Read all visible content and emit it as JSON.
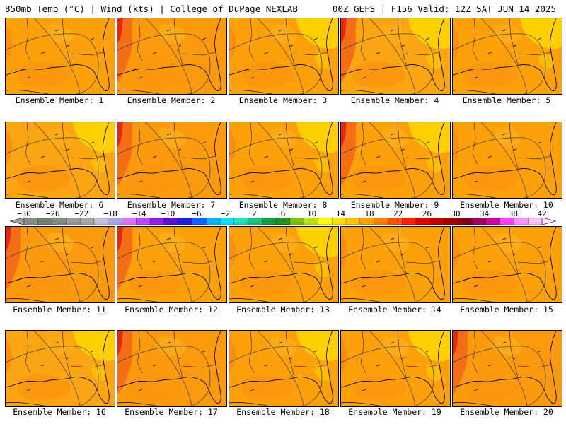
{
  "header": {
    "left": "850mb Temp (°C) | Wind (kts) | College of DuPage NEXLAB",
    "right": "00Z GEFS | F156 Valid: 12Z SAT JUN 14 2025"
  },
  "members": [
    {
      "label": "Ensemble Member: 1",
      "base": "#fca10a",
      "hot_west": false,
      "yellow_ne": false
    },
    {
      "label": "Ensemble Member: 2",
      "base": "#fb9a0c",
      "hot_west": true,
      "yellow_ne": false
    },
    {
      "label": "Ensemble Member: 3",
      "base": "#fca10a",
      "hot_west": false,
      "yellow_ne": true
    },
    {
      "label": "Ensemble Member: 4",
      "base": "#fca512",
      "hot_west": true,
      "yellow_ne": true
    },
    {
      "label": "Ensemble Member: 5",
      "base": "#fca10a",
      "hot_west": false,
      "yellow_ne": true
    },
    {
      "label": "Ensemble Member: 6",
      "base": "#fca512",
      "hot_west": false,
      "yellow_ne": true
    },
    {
      "label": "Ensemble Member: 7",
      "base": "#fb9a0c",
      "hot_west": true,
      "yellow_ne": false
    },
    {
      "label": "Ensemble Member: 8",
      "base": "#fca10a",
      "hot_west": false,
      "yellow_ne": true
    },
    {
      "label": "Ensemble Member: 9",
      "base": "#fca10a",
      "hot_west": true,
      "yellow_ne": true
    },
    {
      "label": "Ensemble Member: 10",
      "base": "#fca10a",
      "hot_west": false,
      "yellow_ne": false
    },
    {
      "label": "Ensemble Member: 11",
      "base": "#fb9a0c",
      "hot_west": true,
      "yellow_ne": false
    },
    {
      "label": "Ensemble Member: 12",
      "base": "#fca10a",
      "hot_west": true,
      "yellow_ne": false
    },
    {
      "label": "Ensemble Member: 13",
      "base": "#fca10a",
      "hot_west": false,
      "yellow_ne": true
    },
    {
      "label": "Ensemble Member: 14",
      "base": "#fca10a",
      "hot_west": false,
      "yellow_ne": false
    },
    {
      "label": "Ensemble Member: 15",
      "base": "#fca10a",
      "hot_west": false,
      "yellow_ne": false
    },
    {
      "label": "Ensemble Member: 16",
      "base": "#fca512",
      "hot_west": false,
      "yellow_ne": true
    },
    {
      "label": "Ensemble Member: 17",
      "base": "#fb9a0c",
      "hot_west": true,
      "yellow_ne": false
    },
    {
      "label": "Ensemble Member: 18",
      "base": "#fca10a",
      "hot_west": false,
      "yellow_ne": true
    },
    {
      "label": "Ensemble Member: 19",
      "base": "#fca10a",
      "hot_west": false,
      "yellow_ne": true
    },
    {
      "label": "Ensemble Member: 20",
      "base": "#fb9a0c",
      "hot_west": true,
      "yellow_ne": false
    }
  ],
  "colorbar": {
    "min": -30,
    "max": 42,
    "tick_labels": [
      "−30",
      "−26",
      "−22",
      "−18",
      "−14",
      "−10",
      "−6",
      "−2",
      "2",
      "6",
      "10",
      "14",
      "18",
      "22",
      "26",
      "30",
      "34",
      "38",
      "42"
    ],
    "colors": [
      "#8a8a8a",
      "#6f7f6f",
      "#7f8f7f",
      "#9a9a9a",
      "#a7a7a7",
      "#c0c0d8",
      "#a8a8e8",
      "#e070ff",
      "#c040ff",
      "#9020e0",
      "#6010d0",
      "#2020d0",
      "#1060ff",
      "#10b0ff",
      "#10e0ff",
      "#20e0c0",
      "#20c080",
      "#10a040",
      "#209020",
      "#80c010",
      "#c0e010",
      "#ffff00",
      "#ffe000",
      "#ffc000",
      "#ffa000",
      "#ff8000",
      "#ff5000",
      "#ff2000",
      "#e00000",
      "#c00000",
      "#a00000",
      "#800020",
      "#a00060",
      "#d000a0",
      "#ff40ff",
      "#ff90ff",
      "#ffc0ff"
    ]
  }
}
